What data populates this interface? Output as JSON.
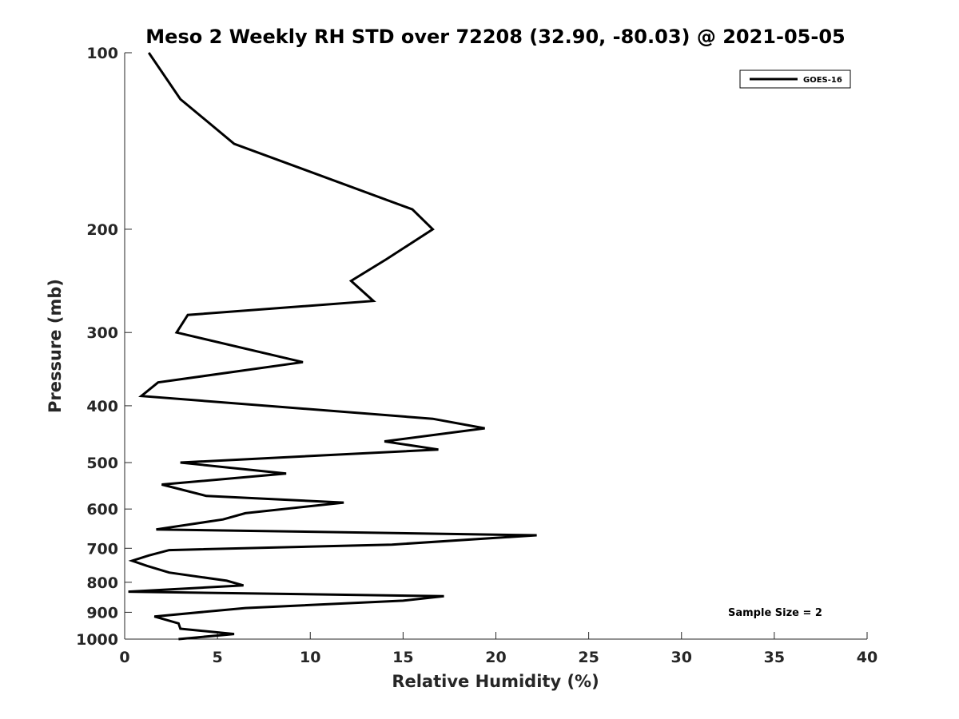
{
  "chart_data": {
    "type": "line",
    "title": "Meso 2 Weekly RH STD over 72208 (32.90, -80.03) @ 2021-05-05",
    "xlabel": "Relative Humidity (%)",
    "ylabel": "Pressure (mb)",
    "xlim": [
      0,
      40
    ],
    "ylim": [
      100,
      1000
    ],
    "y_scale": "log",
    "y_reversed": true,
    "grid": false,
    "legend_position": "top-right",
    "x_ticks": [
      "0",
      "5",
      "10",
      "15",
      "20",
      "25",
      "30",
      "35",
      "40"
    ],
    "y_ticks": [
      "100",
      "200",
      "300",
      "400",
      "500",
      "600",
      "700",
      "800",
      "900",
      "1000"
    ],
    "series": [
      {
        "name": "GOES-16",
        "color": "#000000",
        "x": [
          1.3,
          3.0,
          5.9,
          15.5,
          16.6,
          14.1,
          12.2,
          13.4,
          3.4,
          2.8,
          9.6,
          1.8,
          0.9,
          16.6,
          19.4,
          14.0,
          16.9,
          3.0,
          8.7,
          2.0,
          4.4,
          11.8,
          6.5,
          5.3,
          1.7,
          22.2,
          14.4,
          2.4,
          1.3,
          0.4,
          1.2,
          2.4,
          5.5,
          6.4,
          0.2,
          17.2,
          15.0,
          6.5,
          1.6,
          2.9,
          3.0,
          5.9,
          2.9
        ],
        "y": [
          100,
          120,
          143,
          185,
          200,
          225,
          245,
          265,
          280,
          300,
          337,
          365,
          385,
          421,
          437,
          460,
          475,
          500,
          522,
          545,
          570,
          585,
          610,
          625,
          650,
          665,
          690,
          705,
          720,
          735,
          750,
          770,
          795,
          810,
          830,
          845,
          860,
          885,
          915,
          940,
          960,
          980,
          1000
        ]
      }
    ],
    "annotations": [
      "Sample Size = 2"
    ]
  }
}
